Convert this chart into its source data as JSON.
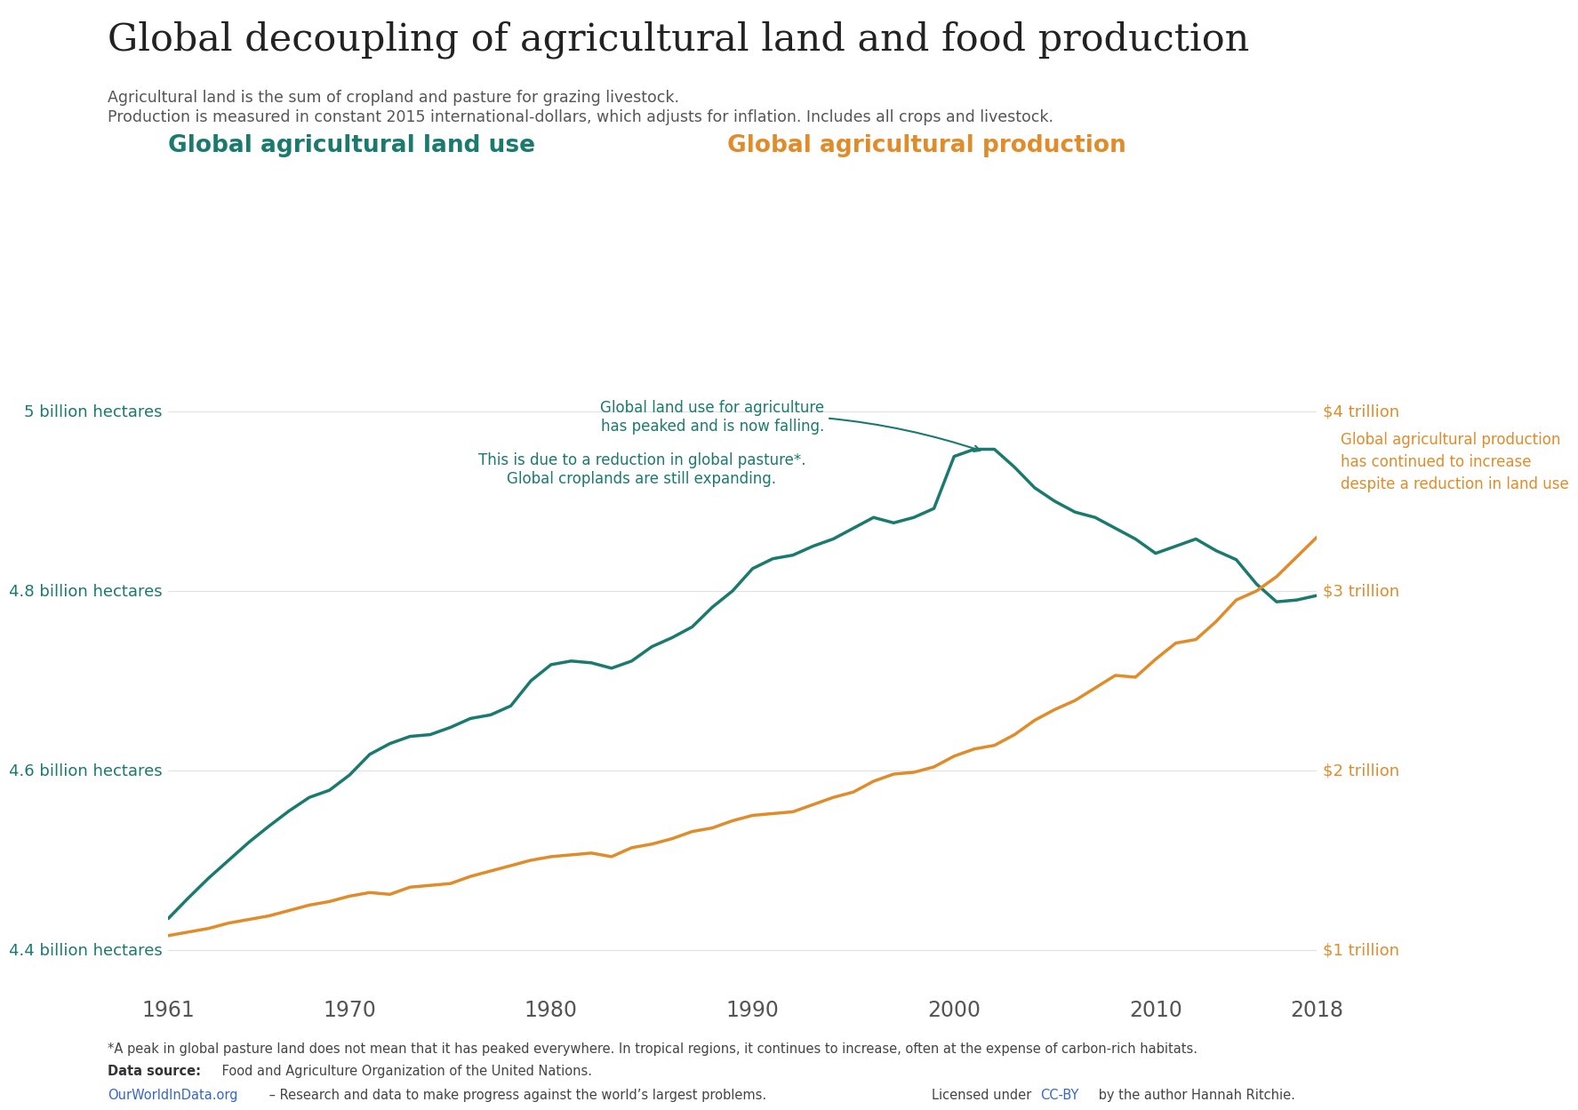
{
  "title": "Global decoupling of agricultural land and food production",
  "subtitle1": "Agricultural land is the sum of cropland and pasture for grazing livestock.",
  "subtitle2": "Production is measured in constant 2015 international-dollars, which adjusts for inflation. Includes all crops and livestock.",
  "left_axis_label": "Global agricultural land use",
  "right_axis_label": "Global agricultural production",
  "land_color": "#1a7a6e",
  "production_color": "#e08c2a",
  "left_yticks_labels": [
    "4.4 billion hectares",
    "4.6 billion hectares",
    "4.8 billion hectares",
    "5 billion hectares"
  ],
  "left_yticks_values": [
    4.4,
    4.6,
    4.8,
    5.0
  ],
  "right_yticks_labels": [
    "$1 trillion",
    "$2 trillion",
    "$3 trillion",
    "$4 trillion"
  ],
  "right_yticks_values": [
    1.0,
    2.0,
    3.0,
    4.0
  ],
  "annotation1_text": "Global land use for agriculture\nhas peaked and is now falling.",
  "annotation2_text": "This is due to a reduction in global pasture*.\nGlobal croplands are still expanding.",
  "annotation3_text": "Global agricultural production\nhas continued to increase\ndespite a reduction in land use",
  "footnote1": "*A peak in global pasture land does not mean that it has peaked everywhere. In tropical regions, it continues to increase, often at the expense of carbon-rich habitats.",
  "footnote2_bold": "Data source:",
  "footnote2_normal": " Food and Agriculture Organization of the United Nations.",
  "footnote3_blue": "OurWorldInData.org",
  "footnote3_rest": " – Research and data to make progress against the world’s largest problems.",
  "footnote3_right_pre": "Licensed under ",
  "footnote3_right_blue": "CC-BY",
  "footnote3_right_post": " by the author Hannah Ritchie.",
  "bg_color": "#ffffff",
  "grid_color": "#e0e0e0",
  "years": [
    1961,
    1962,
    1963,
    1964,
    1965,
    1966,
    1967,
    1968,
    1969,
    1970,
    1971,
    1972,
    1973,
    1974,
    1975,
    1976,
    1977,
    1978,
    1979,
    1980,
    1981,
    1982,
    1983,
    1984,
    1985,
    1986,
    1987,
    1988,
    1989,
    1990,
    1991,
    1992,
    1993,
    1994,
    1995,
    1996,
    1997,
    1998,
    1999,
    2000,
    2001,
    2002,
    2003,
    2004,
    2005,
    2006,
    2007,
    2008,
    2009,
    2010,
    2011,
    2012,
    2013,
    2014,
    2015,
    2016,
    2017,
    2018
  ],
  "land_data": [
    4.435,
    4.458,
    4.48,
    4.5,
    4.52,
    4.538,
    4.555,
    4.57,
    4.578,
    4.595,
    4.618,
    4.63,
    4.638,
    4.64,
    4.648,
    4.658,
    4.662,
    4.672,
    4.7,
    4.718,
    4.722,
    4.72,
    4.714,
    4.722,
    4.738,
    4.748,
    4.76,
    4.782,
    4.8,
    4.825,
    4.836,
    4.84,
    4.85,
    4.858,
    4.87,
    4.882,
    4.876,
    4.882,
    4.892,
    4.95,
    4.958,
    4.958,
    4.938,
    4.915,
    4.9,
    4.888,
    4.882,
    4.87,
    4.858,
    4.842,
    4.85,
    4.858,
    4.845,
    4.835,
    4.808,
    4.788,
    4.79,
    4.795
  ],
  "production_data": [
    1.08,
    1.1,
    1.12,
    1.15,
    1.17,
    1.19,
    1.22,
    1.25,
    1.27,
    1.3,
    1.32,
    1.31,
    1.35,
    1.36,
    1.37,
    1.41,
    1.44,
    1.47,
    1.5,
    1.52,
    1.53,
    1.54,
    1.52,
    1.57,
    1.59,
    1.62,
    1.66,
    1.68,
    1.72,
    1.75,
    1.76,
    1.77,
    1.81,
    1.85,
    1.88,
    1.94,
    1.98,
    1.99,
    2.02,
    2.08,
    2.12,
    2.14,
    2.2,
    2.28,
    2.34,
    2.39,
    2.46,
    2.53,
    2.52,
    2.62,
    2.71,
    2.73,
    2.83,
    2.95,
    3.0,
    3.08,
    3.19,
    3.3
  ]
}
